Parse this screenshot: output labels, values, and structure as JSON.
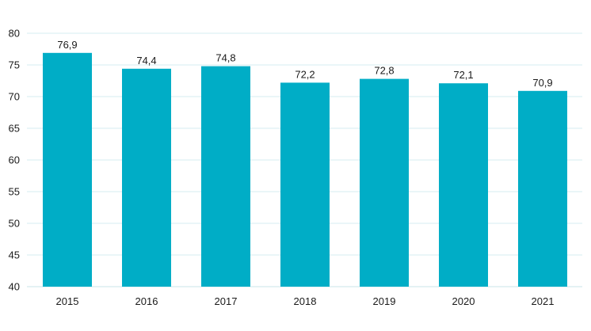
{
  "chart_data": {
    "type": "bar",
    "categories": [
      "2015",
      "2016",
      "2017",
      "2018",
      "2019",
      "2020",
      "2021"
    ],
    "values": [
      76.9,
      74.4,
      74.8,
      72.2,
      72.8,
      72.1,
      70.9
    ],
    "data_labels": [
      "76,9",
      "74,4",
      "74,8",
      "72,2",
      "72,8",
      "72,1",
      "70,9"
    ],
    "y_ticks": [
      40,
      45,
      50,
      55,
      60,
      65,
      70,
      75,
      80
    ],
    "ylim": [
      40,
      80
    ],
    "title": "",
    "xlabel": "",
    "ylabel": "",
    "grid": true,
    "bar_color": "#00adc6",
    "grid_color": "#d6eef1"
  }
}
